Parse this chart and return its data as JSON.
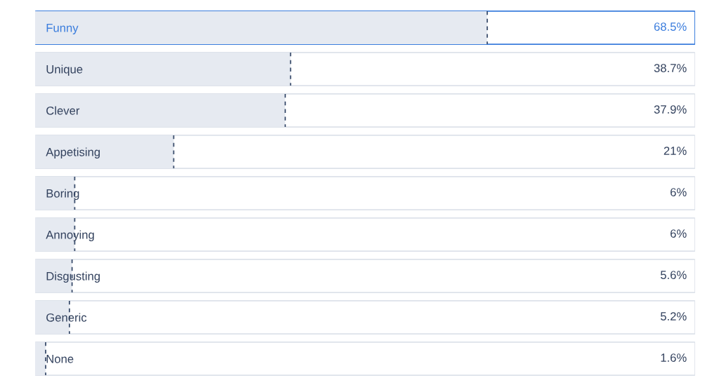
{
  "chart_data": {
    "type": "bar",
    "orientation": "horizontal",
    "categories": [
      "Funny",
      "Unique",
      "Clever",
      "Appetising",
      "Boring",
      "Annoying",
      "Disgusting",
      "Generic",
      "None"
    ],
    "values": [
      68.5,
      38.7,
      37.9,
      21,
      6,
      6,
      5.6,
      5.2,
      1.6
    ],
    "value_labels": [
      "68.5%",
      "38.7%",
      "37.9%",
      "21%",
      "6%",
      "6%",
      "5.6%",
      "5.2%",
      "1.6%"
    ],
    "color": "#e6eaf1",
    "xlim": [
      0,
      100
    ],
    "tick_labels": "y"
  }
}
